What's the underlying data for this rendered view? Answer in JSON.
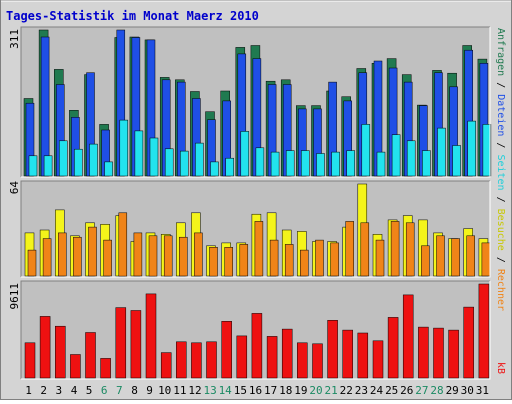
{
  "title": "Tages-Statistik im Monat Maerz 2010",
  "y_labels": {
    "top": "311",
    "middle": "64",
    "bottom": "9611"
  },
  "right_label_top": {
    "anfragen": "Anfragen",
    "dateien": "Dateien",
    "seiten": "Seiten",
    "besuche": "Besuche",
    "sep": " / "
  },
  "right_label_middle": {
    "rechner": "Rechner"
  },
  "right_label_bottom": {
    "kb": "kB"
  },
  "colors": {
    "anfragen": "#207a50",
    "dateien": "#1f4fe6",
    "seiten": "#22e3ee",
    "besuche": "#f4f41a",
    "rechner": "#f08418",
    "kb": "#ee1111",
    "weekday_label": "#000000",
    "weekend_label": "#1b8a63",
    "title": "#0000cc",
    "panel_bg": "#c0c0c0",
    "frame_bg": "#d4d4d4"
  },
  "chart_data": {
    "type": "bar",
    "categories": [
      "1",
      "2",
      "3",
      "4",
      "5",
      "6",
      "7",
      "8",
      "9",
      "10",
      "11",
      "12",
      "13",
      "14",
      "15",
      "16",
      "17",
      "18",
      "19",
      "20",
      "21",
      "22",
      "23",
      "24",
      "25",
      "26",
      "27",
      "28",
      "29",
      "30",
      "31"
    ],
    "weekend_days": [
      "6",
      "7",
      "13",
      "14",
      "20",
      "21",
      "27",
      "28"
    ],
    "panels": [
      {
        "ymax": 311,
        "series": [
          {
            "name": "Anfragen",
            "color": "#207a50",
            "values": [
              165,
              311,
              227,
              140,
              216,
              110,
              295,
              296,
              290,
              210,
              205,
              180,
              137,
              181,
              274,
              278,
              202,
              205,
              150,
              150,
              181,
              169,
              229,
              240,
              250,
              216,
              151,
              225,
              219,
              278,
              249
            ]
          },
          {
            "name": "Dateien",
            "color": "#1f4fe6",
            "values": [
              155,
              296,
              195,
              125,
              220,
              98,
              311,
              295,
              290,
              205,
              200,
              165,
              120,
              160,
              260,
              250,
              195,
              195,
              143,
              143,
              200,
              160,
              220,
              245,
              230,
              200,
              150,
              220,
              190,
              268,
              240
            ]
          },
          {
            "name": "Seiten",
            "color": "#22e3ee",
            "values": [
              43,
              43,
              75,
              57,
              68,
              30,
              119,
              96,
              81,
              58,
              53,
              70,
              30,
              38,
              95,
              60,
              51,
              54,
              54,
              48,
              51,
              54,
              110,
              51,
              88,
              75,
              54,
              102,
              65,
              117,
              110
            ]
          }
        ]
      },
      {
        "ymax": 64,
        "series": [
          {
            "name": "Besuche",
            "color": "#f4f41a",
            "values": [
              30,
              32,
              46,
              28,
              37,
              36,
              42,
              24,
              30,
              29,
              37,
              44,
              21,
              23,
              23,
              43,
              44,
              32,
              31,
              24,
              24,
              34,
              64,
              29,
              39,
              42,
              39,
              30,
              26,
              33,
              26
            ]
          },
          {
            "name": "Rechner",
            "color": "#f08418",
            "values": [
              18,
              26,
              30,
              27,
              34,
              25,
              44,
              30,
              28,
              28,
              27,
              30,
              20,
              20,
              22,
              38,
              25,
              22,
              18,
              25,
              23,
              38,
              37,
              25,
              38,
              37,
              21,
              28,
              26,
              28,
              23
            ]
          }
        ]
      },
      {
        "ymax": 9611,
        "series": [
          {
            "name": "kB",
            "color": "#ee1111",
            "values": [
              3600,
              6300,
              5300,
              2400,
              4650,
              2000,
              7200,
              6900,
              8600,
              2600,
              3700,
              3600,
              3700,
              5800,
              4300,
              6600,
              4250,
              5000,
              3600,
              3500,
              5900,
              4900,
              4600,
              3800,
              6200,
              8500,
              5200,
              5100,
              4900,
              7250,
              9611
            ]
          }
        ]
      }
    ]
  }
}
